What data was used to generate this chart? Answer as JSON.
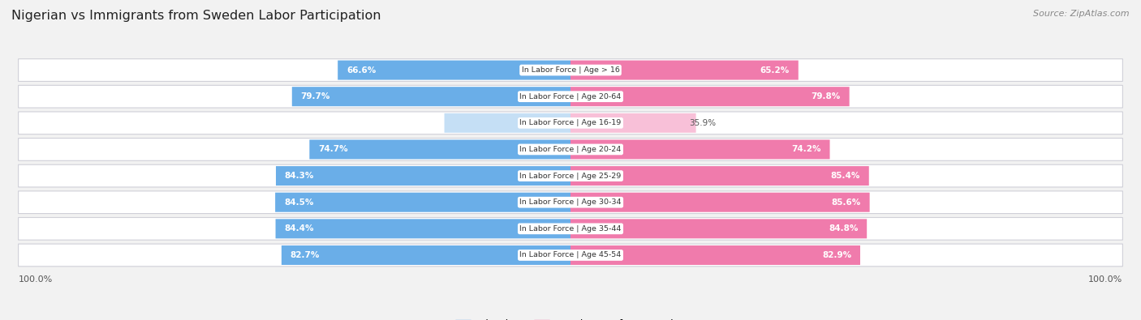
{
  "title": "Nigerian vs Immigrants from Sweden Labor Participation",
  "source": "Source: ZipAtlas.com",
  "categories": [
    "In Labor Force | Age > 16",
    "In Labor Force | Age 20-64",
    "In Labor Force | Age 16-19",
    "In Labor Force | Age 20-24",
    "In Labor Force | Age 25-29",
    "In Labor Force | Age 30-34",
    "In Labor Force | Age 35-44",
    "In Labor Force | Age 45-54"
  ],
  "nigerian_values": [
    66.6,
    79.7,
    36.1,
    74.7,
    84.3,
    84.5,
    84.4,
    82.7
  ],
  "sweden_values": [
    65.2,
    79.8,
    35.9,
    74.2,
    85.4,
    85.6,
    84.8,
    82.9
  ],
  "nigerian_color": "#6aaee8",
  "nigerian_color_light": "#c5dff5",
  "sweden_color": "#f07bac",
  "sweden_color_light": "#f8c0d8",
  "background_color": "#f2f2f2",
  "legend_nigerian": "Nigerian",
  "legend_sweden": "Immigrants from Sweden"
}
